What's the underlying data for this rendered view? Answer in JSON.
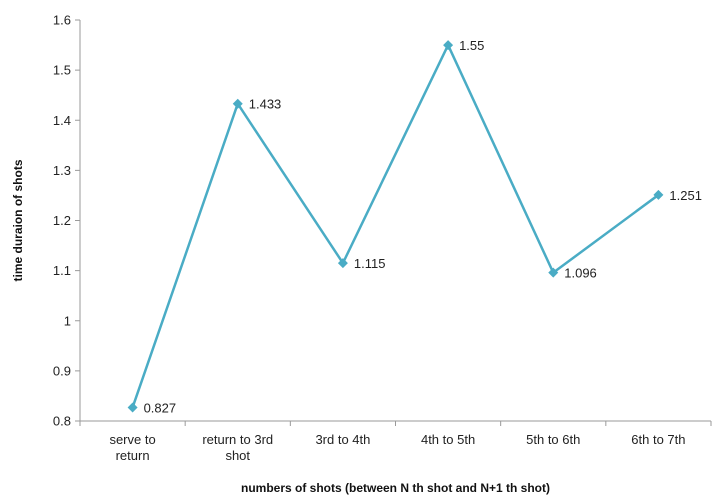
{
  "chart_data": {
    "type": "line",
    "title": "",
    "xlabel": "numbers of shots (between N th shot and N+1 th shot)",
    "ylabel": "time duraion of shots",
    "categories": [
      [
        "serve to",
        "return"
      ],
      [
        "return to 3rd",
        "shot"
      ],
      [
        "3rd to 4th"
      ],
      [
        "4th to 5th"
      ],
      [
        "5th to 6th"
      ],
      [
        "6th to 7th"
      ]
    ],
    "series": [
      {
        "values": [
          0.827,
          1.433,
          1.115,
          1.55,
          1.096,
          1.251
        ]
      }
    ],
    "data_labels": [
      "0.827",
      "1.433",
      "1.115",
      "1.55",
      "1.096",
      "1.251"
    ],
    "ylim": [
      0.8,
      1.6
    ],
    "yticks": [
      "0.8",
      "0.9",
      "1",
      "1.1",
      "1.2",
      "1.3",
      "1.4",
      "1.5",
      "1.6"
    ],
    "grid": false,
    "legend": "none",
    "colors": {
      "line": "#4aacc5",
      "axis": "#9a9a9a"
    }
  }
}
